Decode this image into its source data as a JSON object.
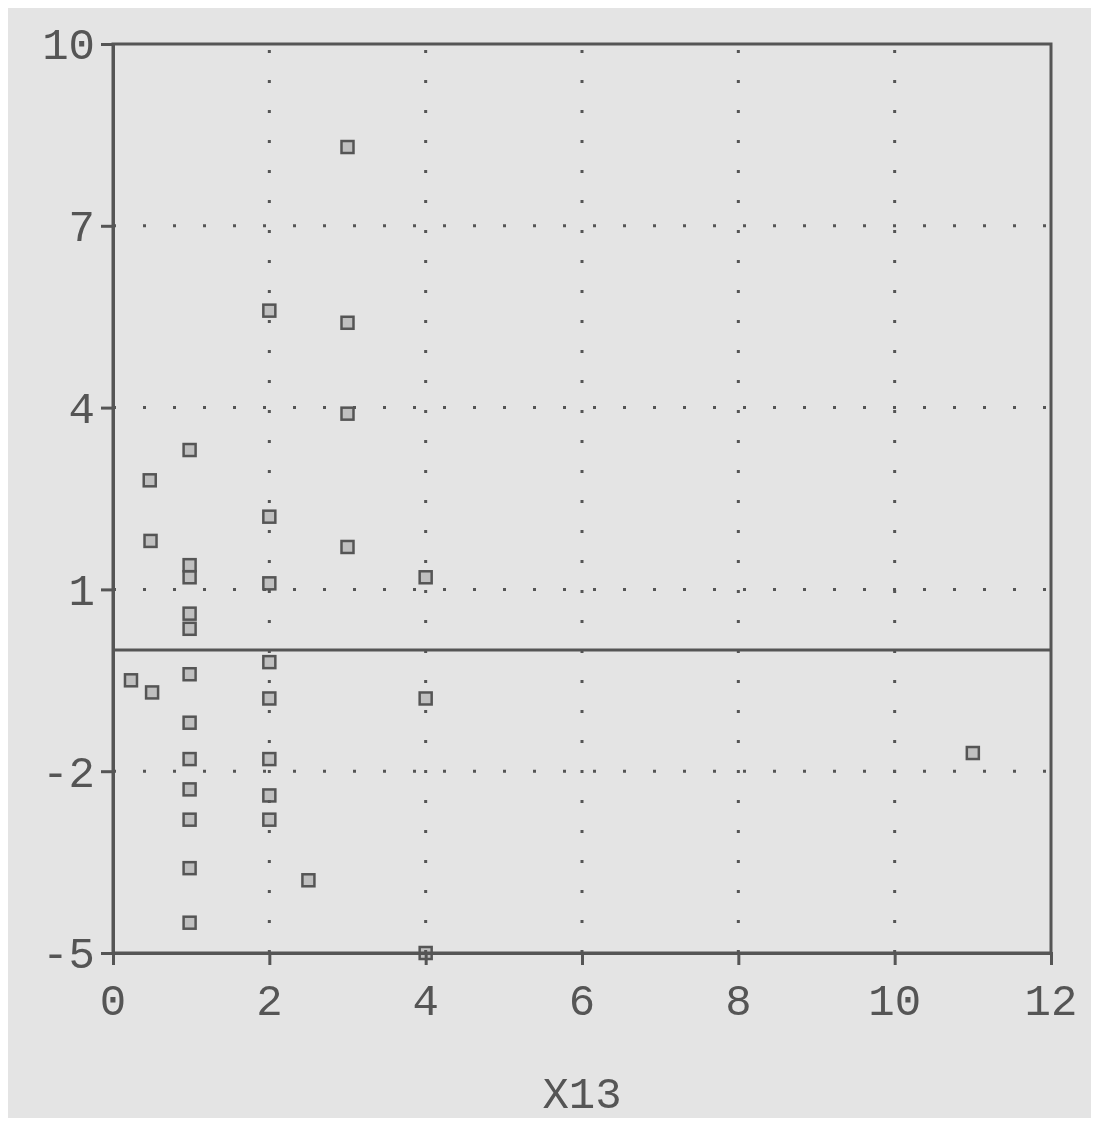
{
  "chart_data": {
    "type": "scatter",
    "xlabel": "X13",
    "x": [
      0.23,
      0.5,
      0.47,
      0.48,
      0.98,
      0.98,
      0.98,
      0.98,
      0.98,
      0.98,
      0.98,
      0.98,
      0.98,
      0.98,
      0.98,
      0.98,
      2.0,
      2.0,
      2.0,
      2.0,
      2.0,
      2.0,
      2.0,
      2.0,
      2.5,
      3.0,
      3.0,
      3.0,
      3.0,
      4.0,
      4.0,
      4.0,
      11.0
    ],
    "values": [
      -0.5,
      -0.7,
      2.8,
      1.8,
      3.3,
      1.4,
      1.2,
      0.6,
      0.35,
      -0.4,
      -1.2,
      -1.8,
      -2.3,
      -2.8,
      -3.6,
      -4.5,
      5.6,
      2.2,
      1.1,
      -0.2,
      -0.8,
      -1.8,
      -2.4,
      -2.8,
      -3.8,
      8.3,
      5.4,
      3.9,
      1.7,
      1.2,
      -0.8,
      -5,
      -1.7
    ],
    "color": "#555555",
    "marker": "square",
    "xlim": [
      0,
      12
    ],
    "xticks": [
      0,
      2,
      4,
      6,
      8,
      10,
      12
    ],
    "ylim": [
      -5,
      10
    ],
    "yticks": [
      -5,
      -2,
      1,
      4,
      7,
      10
    ],
    "grid": true,
    "ref_lines": [
      {
        "axis": "y",
        "value": 0,
        "line_style": "solid"
      }
    ]
  }
}
